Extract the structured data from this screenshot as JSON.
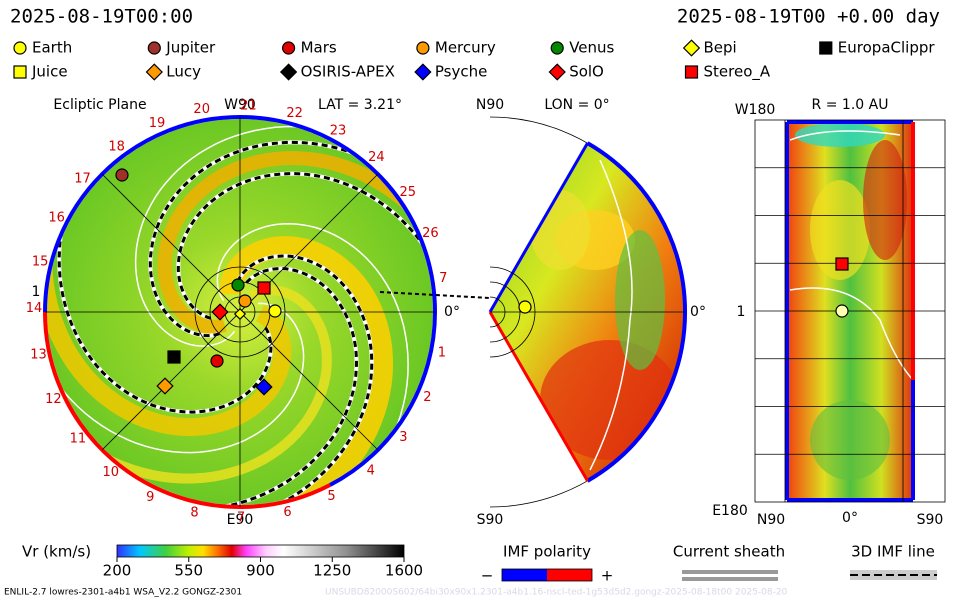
{
  "header": {
    "left": "2025-08-19T00:00",
    "right": "2025-08-19T00 +0.00 day"
  },
  "legend": [
    {
      "label": "Earth",
      "color": "#ffff00",
      "shape": "circle"
    },
    {
      "label": "Jupiter",
      "color": "#a0302a",
      "shape": "circle"
    },
    {
      "label": "Mars",
      "color": "#e00000",
      "shape": "circle"
    },
    {
      "label": "Mercury",
      "color": "#ff9900",
      "shape": "circle"
    },
    {
      "label": "Venus",
      "color": "#008800",
      "shape": "circle"
    },
    {
      "label": "Bepi",
      "color": "#ffff00",
      "shape": "diamond"
    },
    {
      "label": "EuropaClippr",
      "color": "#000000",
      "shape": "square"
    },
    {
      "label": "Juice",
      "color": "#ffff00",
      "shape": "square"
    },
    {
      "label": "Lucy",
      "color": "#ff9900",
      "shape": "diamond"
    },
    {
      "label": "OSIRIS-APEX",
      "color": "#000000",
      "shape": "diamond"
    },
    {
      "label": "Psyche",
      "color": "#0000ff",
      "shape": "diamond"
    },
    {
      "label": "SolO",
      "color": "#ff0000",
      "shape": "diamond"
    },
    {
      "label": "Stereo_A",
      "color": "#ff0000",
      "shape": "square"
    }
  ],
  "ecliptic": {
    "title": "Ecliptic Plane",
    "top": "W90",
    "lat": "LAT = 3.21°",
    "bottom": "E90",
    "right": "0°",
    "left": "1",
    "carrington": [
      "1",
      "2",
      "3",
      "4",
      "5",
      "6",
      "7",
      "8",
      "9",
      "10",
      "11",
      "12",
      "13",
      "14",
      "15",
      "16",
      "17",
      "18",
      "19",
      "20",
      "21",
      "22",
      "23",
      "24",
      "25",
      "26",
      "7"
    ]
  },
  "meridional": {
    "top": "N90",
    "lon": "LON = 0°",
    "right": "0°",
    "bottom": "S90"
  },
  "radial": {
    "top": "W180",
    "radius": "R = 1.0 AU",
    "left": "1",
    "bottom": "E180",
    "x_left": "N90",
    "x_mid": "0°",
    "x_right": "S90"
  },
  "colorbar": {
    "label": "Vr (km/s)",
    "range": [
      200,
      1600
    ],
    "ticks": [
      200,
      550,
      900,
      1250,
      1600
    ]
  },
  "imf": {
    "title": "IMF polarity",
    "minus": "−",
    "plus": "+"
  },
  "sheath": {
    "title": "Current sheath"
  },
  "imf_line": {
    "title": "3D IMF line"
  },
  "footer": {
    "left": "ENLIL-2.7 lowres-2301-a4b1 WSA_V2.2 GONGZ-2301",
    "right": "UNSUBD82000S602/64bi30x90x1.2301-a4b1.16-nscl-ted-1g53d5d2.gongz-2025-08-18t00   2025-08-20"
  }
}
